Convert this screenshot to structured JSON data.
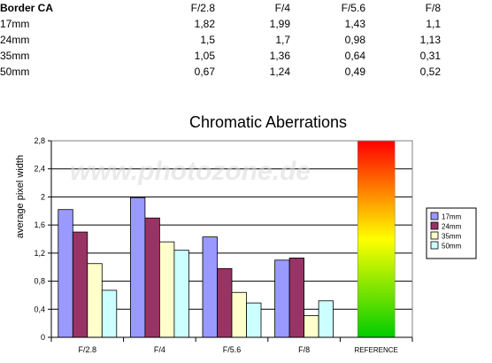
{
  "table": {
    "title": "Border CA",
    "columns": [
      "F/2.8",
      "F/4",
      "F/5.6",
      "F/8"
    ],
    "rows": [
      {
        "label": "17mm",
        "values": [
          "1,82",
          "1,99",
          "1,43",
          "1,1"
        ]
      },
      {
        "label": "24mm",
        "values": [
          "1,5",
          "1,7",
          "0,98",
          "1,13"
        ]
      },
      {
        "label": "35mm",
        "values": [
          "1,05",
          "1,36",
          "0,64",
          "0,31"
        ]
      },
      {
        "label": "50mm",
        "values": [
          "0,67",
          "1,24",
          "0,49",
          "0,52"
        ]
      }
    ]
  },
  "watermark": "www.photozone.de",
  "chart_data": {
    "type": "bar",
    "title": "Chromatic Aberrations",
    "xlabel": "",
    "ylabel": "average pixel width",
    "categories": [
      "F/2.8",
      "F/4",
      "F/5.6",
      "F/8"
    ],
    "reference_label": "REFERENCE",
    "reference_value": 2.8,
    "ylim": [
      0,
      2.8
    ],
    "yticks": [
      "0",
      "0,4",
      "0,8",
      "1,2",
      "1,6",
      "2",
      "2,4",
      "2,8"
    ],
    "grid": true,
    "legend_position": "right",
    "series": [
      {
        "name": "17mm",
        "color": "#9999ff",
        "values": [
          1.82,
          1.99,
          1.43,
          1.1
        ]
      },
      {
        "name": "24mm",
        "color": "#993366",
        "values": [
          1.5,
          1.7,
          0.98,
          1.13
        ]
      },
      {
        "name": "35mm",
        "color": "#ffffcc",
        "values": [
          1.05,
          1.36,
          0.64,
          0.31
        ]
      },
      {
        "name": "50mm",
        "color": "#ccffff",
        "values": [
          0.67,
          1.24,
          0.49,
          0.52
        ]
      }
    ],
    "reference_gradient": [
      "#ff0000",
      "#ffff00",
      "#00cc00"
    ]
  }
}
